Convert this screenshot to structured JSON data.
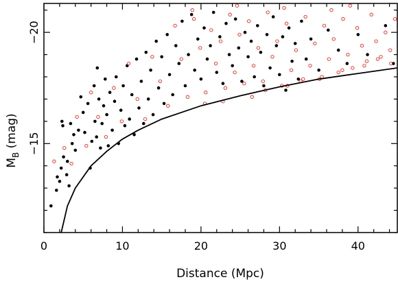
{
  "chart_data": {
    "type": "scatter",
    "xlabel": "Distance (Mpc)",
    "ylabel_main": "M",
    "ylabel_sub": "B",
    "ylabel_unit": " (mag)",
    "xlim": [
      0,
      45
    ],
    "ylim": [
      -11,
      -21.3
    ],
    "y_inverted": true,
    "x_ticks": [
      0,
      10,
      20,
      30,
      40
    ],
    "x_tick_labels": [
      "0",
      "10",
      "20",
      "30",
      "40"
    ],
    "y_ticks": [
      -20,
      -15
    ],
    "y_tick_labels": [
      "−20",
      "−15"
    ],
    "grid": false,
    "colors": {
      "filled": "#000000",
      "open": "#e8261e",
      "curve": "#000000"
    },
    "limit_curve": {
      "description_visible": false,
      "points": [
        [
          2.2,
          -11.0
        ],
        [
          3.0,
          -12.2
        ],
        [
          4,
          -13.0
        ],
        [
          6,
          -14.0
        ],
        [
          8,
          -14.65
        ],
        [
          10,
          -15.2
        ],
        [
          12,
          -15.6
        ],
        [
          15,
          -16.1
        ],
        [
          20,
          -16.7
        ],
        [
          25,
          -17.15
        ],
        [
          30,
          -17.55
        ],
        [
          35,
          -17.9
        ],
        [
          40,
          -18.15
        ],
        [
          45,
          -18.4
        ]
      ]
    },
    "series": [
      {
        "marker": "filled",
        "points": [
          [
            0.9,
            -12.2
          ],
          [
            1.6,
            -12.9
          ],
          [
            1.7,
            -13.5
          ],
          [
            2.0,
            -13.3
          ],
          [
            2.2,
            -13.9
          ],
          [
            2.3,
            -16.0
          ],
          [
            2.4,
            -15.8
          ],
          [
            2.5,
            -14.4
          ],
          [
            2.9,
            -13.6
          ],
          [
            3.0,
            -14.2
          ],
          [
            3.2,
            -13.1
          ],
          [
            3.4,
            -15.9
          ],
          [
            3.6,
            -15.0
          ],
          [
            3.8,
            -15.4
          ],
          [
            4.0,
            -14.7
          ],
          [
            4.4,
            -15.6
          ],
          [
            4.7,
            -17.1
          ],
          [
            5.0,
            -16.4
          ],
          [
            5.2,
            -15.5
          ],
          [
            5.6,
            -16.8
          ],
          [
            5.9,
            -13.9
          ],
          [
            6.1,
            -15.1
          ],
          [
            6.4,
            -17.6
          ],
          [
            6.5,
            -16.0
          ],
          [
            6.7,
            -15.3
          ],
          [
            6.8,
            -18.4
          ],
          [
            7.0,
            -17.0
          ],
          [
            7.2,
            -14.8
          ],
          [
            7.4,
            -15.9
          ],
          [
            7.6,
            -16.7
          ],
          [
            7.8,
            -17.9
          ],
          [
            8.0,
            -16.3
          ],
          [
            8.2,
            -14.9
          ],
          [
            8.4,
            -17.3
          ],
          [
            8.7,
            -15.6
          ],
          [
            9.0,
            -16.9
          ],
          [
            9.2,
            -18.0
          ],
          [
            9.5,
            -15.0
          ],
          [
            9.8,
            -16.5
          ],
          [
            10.1,
            -17.6
          ],
          [
            10.3,
            -15.8
          ],
          [
            10.6,
            -18.5
          ],
          [
            10.9,
            -16.1
          ],
          [
            11.2,
            -17.2
          ],
          [
            11.5,
            -15.4
          ],
          [
            11.8,
            -18.8
          ],
          [
            12.1,
            -16.6
          ],
          [
            12.4,
            -17.8
          ],
          [
            12.7,
            -15.9
          ],
          [
            13.0,
            -19.1
          ],
          [
            13.3,
            -17.0
          ],
          [
            13.6,
            -18.3
          ],
          [
            13.9,
            -16.3
          ],
          [
            14.3,
            -19.6
          ],
          [
            14.6,
            -17.5
          ],
          [
            15.0,
            -18.9
          ],
          [
            15.3,
            -16.8
          ],
          [
            15.7,
            -19.9
          ],
          [
            16.0,
            -18.1
          ],
          [
            16.4,
            -17.2
          ],
          [
            16.8,
            -19.4
          ],
          [
            17.2,
            -18.6
          ],
          [
            17.6,
            -20.5
          ],
          [
            18.0,
            -17.6
          ],
          [
            18.4,
            -19.0
          ],
          [
            18.8,
            -20.8
          ],
          [
            19.2,
            -18.3
          ],
          [
            19.6,
            -19.7
          ],
          [
            20.0,
            -17.9
          ],
          [
            20.4,
            -20.2
          ],
          [
            20.8,
            -18.8
          ],
          [
            21.2,
            -19.4
          ],
          [
            21.6,
            -20.9
          ],
          [
            22.0,
            -18.2
          ],
          [
            22.4,
            -19.8
          ],
          [
            22.8,
            -17.7
          ],
          [
            23.2,
            -20.4
          ],
          [
            23.6,
            -19.0
          ],
          [
            24.0,
            -18.5
          ],
          [
            24.4,
            -20.6
          ],
          [
            24.8,
            -19.3
          ],
          [
            25.2,
            -17.8
          ],
          [
            25.6,
            -20.0
          ],
          [
            26.0,
            -18.9
          ],
          [
            26.4,
            -19.6
          ],
          [
            26.8,
            -18.0
          ],
          [
            27.2,
            -20.3
          ],
          [
            27.6,
            -19.1
          ],
          [
            28.0,
            -17.6
          ],
          [
            28.4,
            -19.9
          ],
          [
            28.8,
            -18.4
          ],
          [
            29.2,
            -20.7
          ],
          [
            29.6,
            -19.4
          ],
          [
            30.0,
            -18.1
          ],
          [
            30.4,
            -19.8
          ],
          [
            30.8,
            -17.4
          ],
          [
            31.2,
            -20.2
          ],
          [
            31.6,
            -18.7
          ],
          [
            32.0,
            -19.5
          ],
          [
            32.4,
            -17.9
          ],
          [
            32.8,
            -20.5
          ],
          [
            33.4,
            -18.8
          ],
          [
            34.0,
            -19.7
          ],
          [
            35.0,
            -18.3
          ],
          [
            36.2,
            -20.1
          ],
          [
            37.5,
            -19.2
          ],
          [
            38.6,
            -18.6
          ],
          [
            40.0,
            -19.9
          ],
          [
            41.2,
            -19.0
          ],
          [
            43.5,
            -20.3
          ],
          [
            44.5,
            -18.6
          ]
        ]
      },
      {
        "marker": "open",
        "points": [
          [
            1.3,
            -14.2
          ],
          [
            2.6,
            -14.8
          ],
          [
            3.5,
            -14.1
          ],
          [
            4.2,
            -16.2
          ],
          [
            5.4,
            -14.9
          ],
          [
            6.0,
            -17.3
          ],
          [
            6.9,
            -16.2
          ],
          [
            7.9,
            -15.3
          ],
          [
            8.9,
            -17.5
          ],
          [
            9.9,
            -16.0
          ],
          [
            10.8,
            -18.6
          ],
          [
            11.9,
            -17.0
          ],
          [
            12.9,
            -16.1
          ],
          [
            13.8,
            -18.9
          ],
          [
            14.8,
            -17.8
          ],
          [
            15.8,
            -16.7
          ],
          [
            16.7,
            -20.3
          ],
          [
            17.5,
            -18.8
          ],
          [
            18.3,
            -17.1
          ],
          [
            19.1,
            -20.6
          ],
          [
            19.9,
            -19.3
          ],
          [
            20.6,
            -17.3
          ],
          [
            21.3,
            -20.1
          ],
          [
            21.9,
            -18.6
          ],
          [
            22.5,
            -19.6
          ],
          [
            23.1,
            -17.5
          ],
          [
            23.7,
            -20.8
          ],
          [
            24.3,
            -18.2
          ],
          [
            24.9,
            -19.9
          ],
          [
            25.5,
            -17.7
          ],
          [
            26.1,
            -20.5
          ],
          [
            26.7,
            -18.5
          ],
          [
            27.3,
            -19.3
          ],
          [
            27.9,
            -17.8
          ],
          [
            28.5,
            -20.9
          ],
          [
            29.1,
            -18.9
          ],
          [
            29.7,
            -19.6
          ],
          [
            30.3,
            -17.6
          ],
          [
            30.9,
            -20.4
          ],
          [
            31.5,
            -18.3
          ],
          [
            32.1,
            -19.2
          ],
          [
            32.7,
            -17.8
          ],
          [
            33.3,
            -20.7
          ],
          [
            33.9,
            -18.5
          ],
          [
            34.5,
            -19.5
          ],
          [
            35.1,
            -17.9
          ],
          [
            35.7,
            -20.3
          ],
          [
            36.3,
            -18.8
          ],
          [
            36.9,
            -19.7
          ],
          [
            37.5,
            -18.2
          ],
          [
            38.1,
            -20.6
          ],
          [
            38.7,
            -19.0
          ],
          [
            39.3,
            -18.4
          ],
          [
            39.9,
            -20.2
          ],
          [
            40.5,
            -19.4
          ],
          [
            41.1,
            -18.7
          ],
          [
            41.7,
            -20.8
          ],
          [
            42.3,
            -19.6
          ],
          [
            42.9,
            -18.9
          ],
          [
            43.5,
            -20.0
          ],
          [
            44.1,
            -19.2
          ],
          [
            44.7,
            -20.6
          ],
          [
            44.2,
            -18.6
          ],
          [
            26.5,
            -17.1
          ],
          [
            28.2,
            -17.4
          ],
          [
            31.0,
            -17.6
          ],
          [
            33.0,
            -17.9
          ],
          [
            22.8,
            -16.9
          ],
          [
            20.5,
            -16.8
          ],
          [
            35.4,
            -18.0
          ],
          [
            38.0,
            -18.3
          ],
          [
            40.8,
            -18.5
          ],
          [
            42.5,
            -18.8
          ],
          [
            18.9,
            -21.0
          ],
          [
            24.6,
            -21.2
          ],
          [
            30.6,
            -21.1
          ],
          [
            36.6,
            -21.0
          ],
          [
            39.0,
            -21.2
          ]
        ]
      }
    ]
  }
}
